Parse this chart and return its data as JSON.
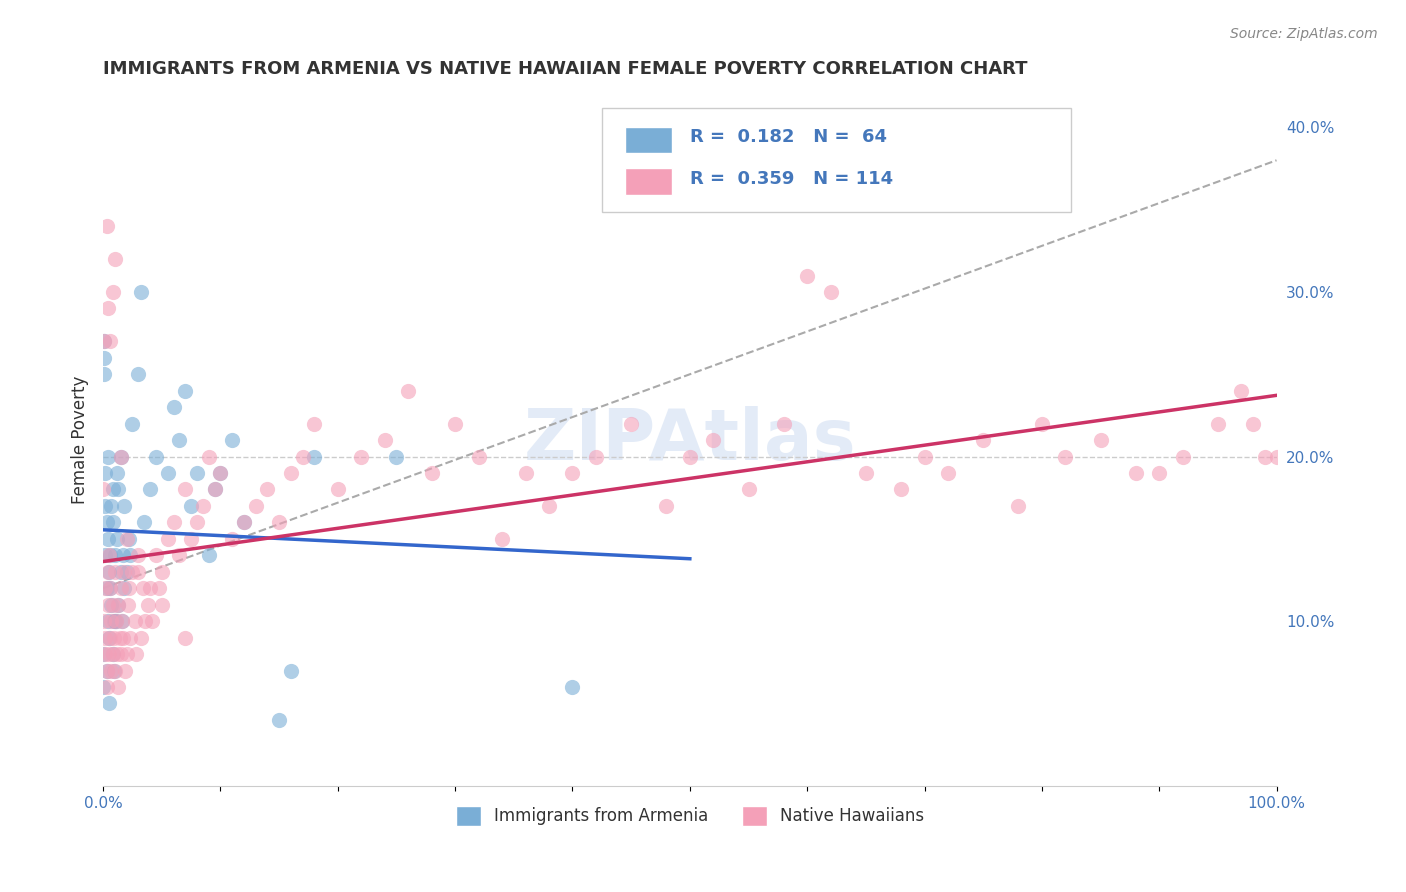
{
  "title": "IMMIGRANTS FROM ARMENIA VS NATIVE HAWAIIAN FEMALE POVERTY CORRELATION CHART",
  "source": "Source: ZipAtlas.com",
  "xlabel": "",
  "ylabel": "Female Poverty",
  "xlim": [
    0,
    1.0
  ],
  "ylim": [
    0,
    0.42
  ],
  "xticks": [
    0,
    0.1,
    0.2,
    0.3,
    0.4,
    0.5,
    0.6,
    0.7,
    0.8,
    0.9,
    1.0
  ],
  "xticklabels": [
    "0.0%",
    "",
    "",
    "",
    "",
    "",
    "",
    "",
    "",
    "",
    "100.0%"
  ],
  "yticks_right": [
    0.1,
    0.2,
    0.3,
    0.4
  ],
  "yticklabels_right": [
    "10.0%",
    "20.0%",
    "30.0%",
    "40.0%"
  ],
  "legend_entries": [
    {
      "label": "R =  0.182   N =  64",
      "color": "#a8c4e0"
    },
    {
      "label": "R =  0.359   N = 114",
      "color": "#f4b8c8"
    }
  ],
  "legend_label1": "Immigrants from Armenia",
  "legend_label2": "Native Hawaiians",
  "blue_color": "#7aaed6",
  "pink_color": "#f4a0b8",
  "blue_line_color": "#3366cc",
  "pink_line_color": "#cc3366",
  "dashed_line_color": "#aaaaaa",
  "watermark": "ZIPAtlas",
  "title_color": "#333333",
  "axis_color": "#4477bb",
  "blue_R": 0.182,
  "blue_N": 64,
  "pink_R": 0.359,
  "pink_N": 114,
  "blue_scatter": {
    "x": [
      0.0,
      0.0,
      0.001,
      0.001,
      0.001,
      0.002,
      0.002,
      0.002,
      0.003,
      0.003,
      0.003,
      0.004,
      0.004,
      0.004,
      0.005,
      0.005,
      0.005,
      0.006,
      0.006,
      0.007,
      0.007,
      0.008,
      0.008,
      0.008,
      0.009,
      0.009,
      0.01,
      0.01,
      0.011,
      0.012,
      0.012,
      0.013,
      0.013,
      0.015,
      0.015,
      0.016,
      0.017,
      0.018,
      0.018,
      0.02,
      0.022,
      0.023,
      0.025,
      0.03,
      0.032,
      0.035,
      0.04,
      0.045,
      0.055,
      0.06,
      0.065,
      0.07,
      0.075,
      0.08,
      0.09,
      0.095,
      0.1,
      0.11,
      0.12,
      0.15,
      0.16,
      0.18,
      0.25,
      0.4
    ],
    "y": [
      0.08,
      0.06,
      0.25,
      0.27,
      0.26,
      0.14,
      0.17,
      0.19,
      0.07,
      0.12,
      0.16,
      0.1,
      0.15,
      0.2,
      0.05,
      0.09,
      0.13,
      0.12,
      0.14,
      0.11,
      0.17,
      0.08,
      0.16,
      0.18,
      0.07,
      0.1,
      0.1,
      0.14,
      0.1,
      0.15,
      0.19,
      0.11,
      0.18,
      0.13,
      0.2,
      0.1,
      0.14,
      0.12,
      0.17,
      0.13,
      0.15,
      0.14,
      0.22,
      0.25,
      0.3,
      0.16,
      0.18,
      0.2,
      0.19,
      0.23,
      0.21,
      0.24,
      0.17,
      0.19,
      0.14,
      0.18,
      0.19,
      0.21,
      0.16,
      0.04,
      0.07,
      0.2,
      0.2,
      0.06
    ]
  },
  "pink_scatter": {
    "x": [
      0.0,
      0.001,
      0.001,
      0.002,
      0.002,
      0.002,
      0.003,
      0.003,
      0.004,
      0.004,
      0.005,
      0.005,
      0.006,
      0.006,
      0.007,
      0.007,
      0.008,
      0.008,
      0.009,
      0.01,
      0.01,
      0.011,
      0.012,
      0.013,
      0.013,
      0.014,
      0.015,
      0.015,
      0.016,
      0.017,
      0.018,
      0.019,
      0.02,
      0.021,
      0.022,
      0.023,
      0.025,
      0.027,
      0.028,
      0.03,
      0.032,
      0.034,
      0.036,
      0.038,
      0.04,
      0.042,
      0.045,
      0.048,
      0.05,
      0.055,
      0.06,
      0.065,
      0.07,
      0.075,
      0.08,
      0.085,
      0.09,
      0.095,
      0.1,
      0.11,
      0.12,
      0.13,
      0.14,
      0.15,
      0.16,
      0.17,
      0.18,
      0.2,
      0.22,
      0.24,
      0.26,
      0.28,
      0.3,
      0.32,
      0.34,
      0.36,
      0.38,
      0.4,
      0.42,
      0.45,
      0.48,
      0.5,
      0.52,
      0.55,
      0.58,
      0.6,
      0.62,
      0.65,
      0.68,
      0.7,
      0.72,
      0.75,
      0.78,
      0.8,
      0.82,
      0.85,
      0.88,
      0.9,
      0.92,
      0.95,
      0.97,
      0.98,
      0.99,
      1.0,
      0.003,
      0.004,
      0.006,
      0.008,
      0.01,
      0.015,
      0.02,
      0.03,
      0.05,
      0.07
    ],
    "y": [
      0.18,
      0.27,
      0.1,
      0.12,
      0.09,
      0.08,
      0.07,
      0.06,
      0.11,
      0.13,
      0.08,
      0.14,
      0.09,
      0.12,
      0.07,
      0.1,
      0.11,
      0.08,
      0.09,
      0.13,
      0.07,
      0.1,
      0.08,
      0.11,
      0.06,
      0.09,
      0.12,
      0.08,
      0.1,
      0.09,
      0.13,
      0.07,
      0.08,
      0.11,
      0.12,
      0.09,
      0.13,
      0.1,
      0.08,
      0.14,
      0.09,
      0.12,
      0.1,
      0.11,
      0.12,
      0.1,
      0.14,
      0.12,
      0.13,
      0.15,
      0.16,
      0.14,
      0.18,
      0.15,
      0.16,
      0.17,
      0.2,
      0.18,
      0.19,
      0.15,
      0.16,
      0.17,
      0.18,
      0.16,
      0.19,
      0.2,
      0.22,
      0.18,
      0.2,
      0.21,
      0.24,
      0.19,
      0.22,
      0.2,
      0.15,
      0.19,
      0.17,
      0.19,
      0.2,
      0.22,
      0.17,
      0.2,
      0.21,
      0.18,
      0.22,
      0.31,
      0.3,
      0.19,
      0.18,
      0.2,
      0.19,
      0.21,
      0.17,
      0.22,
      0.2,
      0.21,
      0.19,
      0.19,
      0.2,
      0.22,
      0.24,
      0.22,
      0.2,
      0.2,
      0.34,
      0.29,
      0.27,
      0.3,
      0.32,
      0.2,
      0.15,
      0.13,
      0.11,
      0.09
    ]
  }
}
